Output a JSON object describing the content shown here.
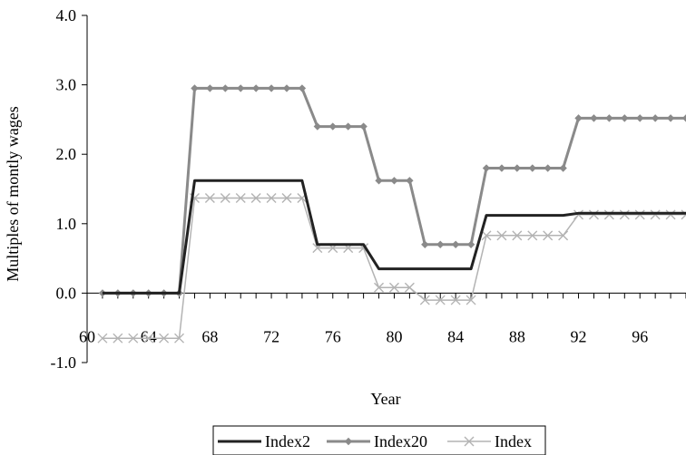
{
  "chart_data": {
    "type": "line",
    "title": "",
    "xlabel": "Year",
    "ylabel": "Multiples of montly wages",
    "x_ticks": [
      "60",
      "64",
      "68",
      "72",
      "76",
      "80",
      "84",
      "88",
      "92",
      "96"
    ],
    "y_ticks": [
      "-1.0",
      "0.0",
      "1.0",
      "2.0",
      "3.0",
      "4.0"
    ],
    "xlim": [
      60,
      99
    ],
    "ylim": [
      -1.0,
      4.0
    ],
    "grid": false,
    "legend_position": "bottom",
    "x": [
      61,
      62,
      63,
      64,
      65,
      66,
      67,
      68,
      69,
      70,
      71,
      72,
      73,
      74,
      75,
      76,
      77,
      78,
      79,
      80,
      81,
      82,
      83,
      84,
      85,
      86,
      87,
      88,
      89,
      90,
      91,
      92,
      93,
      94,
      95,
      96,
      97,
      98,
      99
    ],
    "series": [
      {
        "name": "Index2",
        "color": "#222222",
        "marker": "none",
        "values": [
          0,
          0,
          0,
          0,
          0,
          0,
          1.62,
          1.62,
          1.62,
          1.62,
          1.62,
          1.62,
          1.62,
          1.62,
          0.7,
          0.7,
          0.7,
          0.7,
          0.35,
          0.35,
          0.35,
          0.35,
          0.35,
          0.35,
          0.35,
          1.12,
          1.12,
          1.12,
          1.12,
          1.12,
          1.12,
          1.15,
          1.15,
          1.15,
          1.15,
          1.15,
          1.15,
          1.15,
          1.15
        ]
      },
      {
        "name": "Index20",
        "color": "#8a8a8a",
        "marker": "diamond",
        "values": [
          0,
          0,
          0,
          0,
          0,
          0,
          2.95,
          2.95,
          2.95,
          2.95,
          2.95,
          2.95,
          2.95,
          2.95,
          2.4,
          2.4,
          2.4,
          2.4,
          1.62,
          1.62,
          1.62,
          0.7,
          0.7,
          0.7,
          0.7,
          1.8,
          1.8,
          1.8,
          1.8,
          1.8,
          1.8,
          2.52,
          2.52,
          2.52,
          2.52,
          2.52,
          2.52,
          2.52,
          2.52
        ]
      },
      {
        "name": "Index",
        "color": "#b3b3b3",
        "marker": "x",
        "values": [
          -0.65,
          -0.65,
          -0.65,
          -0.65,
          -0.65,
          -0.65,
          1.37,
          1.37,
          1.37,
          1.37,
          1.37,
          1.37,
          1.37,
          1.37,
          0.65,
          0.65,
          0.65,
          0.65,
          0.08,
          0.08,
          0.08,
          -0.1,
          -0.1,
          -0.1,
          -0.1,
          0.83,
          0.83,
          0.83,
          0.83,
          0.83,
          0.83,
          1.13,
          1.13,
          1.13,
          1.13,
          1.13,
          1.13,
          1.13,
          1.13
        ]
      }
    ]
  }
}
